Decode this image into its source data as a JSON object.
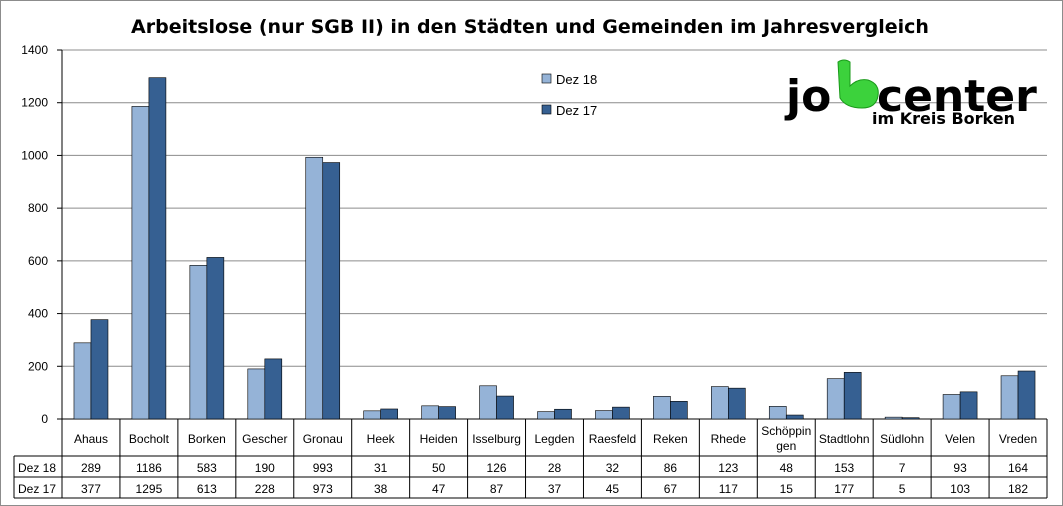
{
  "chart_data": {
    "type": "bar",
    "title": "Arbeitslose (nur SGB II) in den Städten und Gemeinden im Jahresvergleich",
    "categories": [
      "Ahaus",
      "Bocholt",
      "Borken",
      "Gescher",
      "Gronau",
      "Heek",
      "Heiden",
      "Isselburg",
      "Legden",
      "Raesfeld",
      "Reken",
      "Rhede",
      "Schöppingen",
      "Stadtlohn",
      "Südlohn",
      "Velen",
      "Vreden"
    ],
    "category_display": [
      [
        "Ahaus"
      ],
      [
        "Bocholt"
      ],
      [
        "Borken"
      ],
      [
        "Gescher"
      ],
      [
        "Gronau"
      ],
      [
        "Heek"
      ],
      [
        "Heiden"
      ],
      [
        "Isselburg"
      ],
      [
        "Legden"
      ],
      [
        "Raesfeld"
      ],
      [
        "Reken"
      ],
      [
        "Rhede"
      ],
      [
        "Schöppin",
        "gen"
      ],
      [
        "Stadtlohn"
      ],
      [
        "Südlohn"
      ],
      [
        "Velen"
      ],
      [
        "Vreden"
      ]
    ],
    "series": [
      {
        "name": "Dez 18",
        "color": "#95b3d7",
        "values": [
          289,
          1186,
          583,
          190,
          993,
          31,
          50,
          126,
          28,
          32,
          86,
          123,
          48,
          153,
          7,
          93,
          164
        ]
      },
      {
        "name": "Dez 17",
        "color": "#366092",
        "values": [
          377,
          1295,
          613,
          228,
          973,
          38,
          47,
          87,
          37,
          45,
          67,
          117,
          15,
          177,
          5,
          103,
          182
        ]
      }
    ],
    "ylim": [
      0,
      1400
    ],
    "yticks": [
      0,
      200,
      400,
      600,
      800,
      1000,
      1200,
      1400
    ],
    "grid": true,
    "legend_position": "top-center",
    "data_table": true
  },
  "logo": {
    "line1_a": "jo",
    "line1_b": "center",
    "line2": "im Kreis Borken",
    "accent_color": "#3cd23c"
  }
}
